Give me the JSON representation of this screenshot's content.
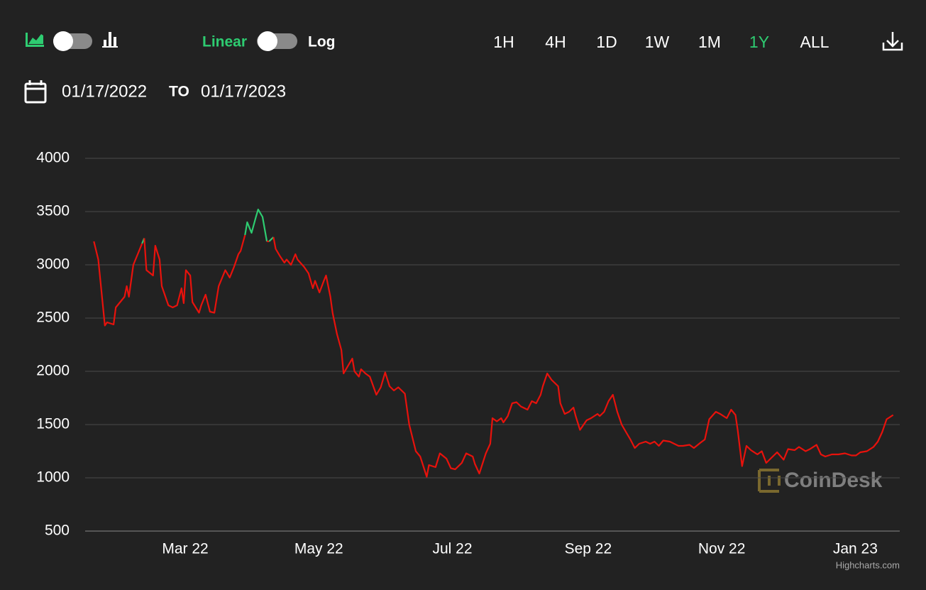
{
  "controls": {
    "linear_label": "Linear",
    "log_label": "Log",
    "ranges": [
      "1H",
      "4H",
      "1D",
      "1W",
      "1M",
      "1Y",
      "ALL"
    ],
    "active_range": 5,
    "active_color": "#2ecc71",
    "date_from": "01/17/2022",
    "date_to_label": "TO",
    "date_to": "01/17/2023"
  },
  "watermark": "CoinDesk",
  "credit": "Highcharts.com",
  "chart_data": {
    "type": "line",
    "color": "#e8120c",
    "above_color": "#2ecc71",
    "x": [
      0,
      2,
      5,
      6,
      9,
      10,
      14,
      15,
      16,
      18,
      20,
      22,
      23,
      24,
      27,
      28,
      30,
      31,
      34,
      36,
      38,
      40,
      41,
      42,
      44,
      45,
      48,
      49,
      51,
      53,
      55,
      57,
      60,
      62,
      64,
      66,
      67,
      69,
      70,
      72,
      74,
      75,
      77,
      79,
      80,
      82,
      83,
      85,
      87,
      88,
      90,
      92,
      93,
      96,
      98,
      100,
      101,
      103,
      105,
      106,
      108,
      109,
      111,
      113,
      114,
      116,
      118,
      119,
      121,
      122,
      124,
      126,
      129,
      131,
      133,
      135,
      137,
      139,
      142,
      144,
      147,
      149,
      152,
      153,
      156,
      158,
      161,
      163,
      165,
      168,
      170,
      173,
      174,
      176,
      179,
      181,
      182,
      184,
      186,
      187,
      189,
      191,
      193,
      195,
      198,
      200,
      202,
      204,
      205,
      207,
      209,
      212,
      213,
      215,
      217,
      219,
      220,
      222,
      225,
      227,
      230,
      231,
      233,
      235,
      237,
      239,
      241,
      243,
      245,
      247,
      249,
      252,
      254,
      256,
      258,
      260,
      263,
      265,
      267,
      269,
      272,
      274,
      277,
      279,
      281,
      284,
      286,
      289,
      291,
      293,
      294,
      296,
      298,
      300,
      303,
      305,
      307,
      310,
      312,
      315,
      317,
      320,
      322,
      325,
      327,
      330,
      332,
      334,
      337,
      340,
      343,
      346,
      348,
      350,
      353,
      356,
      358,
      360,
      362,
      365
    ],
    "values": [
      3220,
      3050,
      2430,
      2460,
      2440,
      2600,
      2700,
      2800,
      2700,
      3000,
      3100,
      3200,
      3250,
      2950,
      2900,
      3180,
      3050,
      2800,
      2620,
      2600,
      2620,
      2780,
      2640,
      2950,
      2900,
      2650,
      2550,
      2620,
      2720,
      2560,
      2550,
      2800,
      2950,
      2880,
      2980,
      3100,
      3130,
      3280,
      3400,
      3300,
      3450,
      3520,
      3450,
      3220,
      3220,
      3260,
      3150,
      3080,
      3020,
      3050,
      3000,
      3100,
      3050,
      2980,
      2920,
      2780,
      2850,
      2740,
      2850,
      2900,
      2700,
      2550,
      2350,
      2200,
      1980,
      2050,
      2120,
      2000,
      1950,
      2020,
      1980,
      1950,
      1780,
      1850,
      1990,
      1860,
      1820,
      1850,
      1790,
      1500,
      1250,
      1200,
      1010,
      1120,
      1100,
      1230,
      1180,
      1090,
      1080,
      1140,
      1230,
      1200,
      1130,
      1040,
      1230,
      1320,
      1560,
      1530,
      1560,
      1520,
      1580,
      1700,
      1710,
      1670,
      1640,
      1720,
      1700,
      1780,
      1860,
      1980,
      1920,
      1860,
      1700,
      1600,
      1620,
      1660,
      1580,
      1450,
      1540,
      1560,
      1600,
      1580,
      1620,
      1720,
      1780,
      1620,
      1500,
      1430,
      1360,
      1280,
      1320,
      1340,
      1320,
      1340,
      1300,
      1350,
      1340,
      1320,
      1300,
      1300,
      1310,
      1280,
      1330,
      1360,
      1550,
      1620,
      1600,
      1560,
      1640,
      1590,
      1450,
      1110,
      1300,
      1260,
      1220,
      1250,
      1140,
      1200,
      1240,
      1170,
      1270,
      1260,
      1290,
      1250,
      1270,
      1310,
      1220,
      1200,
      1220,
      1220,
      1230,
      1210,
      1210,
      1240,
      1250,
      1290,
      1340,
      1430,
      1550,
      1590
    ],
    "xlim": [
      -4,
      368
    ],
    "xticks": [
      {
        "value": 43,
        "label": "Mar 22"
      },
      {
        "value": 104,
        "label": "May 22"
      },
      {
        "value": 165,
        "label": "Jul 22"
      },
      {
        "value": 227,
        "label": "Sep 22"
      },
      {
        "value": 288,
        "label": "Nov 22"
      },
      {
        "value": 349,
        "label": "Jan 23"
      }
    ],
    "ylim": [
      500,
      4000
    ],
    "yticks": [
      500,
      1000,
      1500,
      2000,
      2500,
      3000,
      3500,
      4000
    ],
    "grid": true
  }
}
